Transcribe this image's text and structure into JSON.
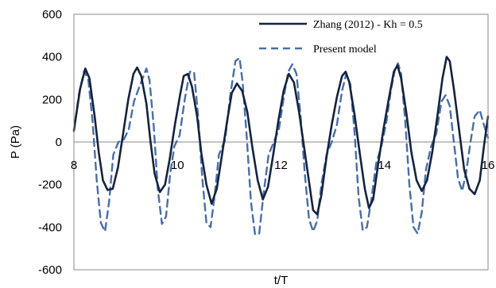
{
  "chart_data": {
    "type": "line",
    "title": "",
    "xlabel": "t/T",
    "ylabel": "P (Pa)",
    "xlim": [
      8,
      16
    ],
    "ylim": [
      -600,
      600
    ],
    "x_ticks": [
      8,
      10,
      12,
      14,
      16
    ],
    "y_ticks": [
      600,
      400,
      200,
      0,
      -200,
      -400,
      -600
    ],
    "legend": {
      "position": "top-right"
    },
    "series": [
      {
        "name": "Zhang (2012) - Kh = 0.5",
        "style": "solid",
        "color": "#14233f",
        "points": [
          [
            8.0,
            55
          ],
          [
            8.12,
            250
          ],
          [
            8.22,
            345
          ],
          [
            8.3,
            300
          ],
          [
            8.4,
            120
          ],
          [
            8.48,
            -50
          ],
          [
            8.56,
            -180
          ],
          [
            8.65,
            -225
          ],
          [
            8.75,
            -220
          ],
          [
            8.85,
            -120
          ],
          [
            8.95,
            40
          ],
          [
            9.05,
            200
          ],
          [
            9.15,
            320
          ],
          [
            9.22,
            350
          ],
          [
            9.3,
            310
          ],
          [
            9.4,
            180
          ],
          [
            9.48,
            0
          ],
          [
            9.56,
            -150
          ],
          [
            9.66,
            -235
          ],
          [
            9.76,
            -200
          ],
          [
            9.85,
            -80
          ],
          [
            9.95,
            80
          ],
          [
            10.05,
            220
          ],
          [
            10.12,
            310
          ],
          [
            10.2,
            320
          ],
          [
            10.28,
            260
          ],
          [
            10.38,
            120
          ],
          [
            10.46,
            -50
          ],
          [
            10.56,
            -200
          ],
          [
            10.66,
            -290
          ],
          [
            10.76,
            -220
          ],
          [
            10.86,
            -60
          ],
          [
            10.96,
            100
          ],
          [
            11.05,
            230
          ],
          [
            11.15,
            275
          ],
          [
            11.25,
            240
          ],
          [
            11.35,
            140
          ],
          [
            11.45,
            -30
          ],
          [
            11.55,
            -180
          ],
          [
            11.65,
            -270
          ],
          [
            11.75,
            -210
          ],
          [
            11.85,
            -60
          ],
          [
            11.95,
            100
          ],
          [
            12.05,
            240
          ],
          [
            12.15,
            320
          ],
          [
            12.25,
            280
          ],
          [
            12.35,
            140
          ],
          [
            12.45,
            -30
          ],
          [
            12.55,
            -200
          ],
          [
            12.62,
            -320
          ],
          [
            12.7,
            -340
          ],
          [
            12.78,
            -250
          ],
          [
            12.88,
            -70
          ],
          [
            12.98,
            80
          ],
          [
            13.08,
            210
          ],
          [
            13.18,
            310
          ],
          [
            13.25,
            330
          ],
          [
            13.32,
            280
          ],
          [
            13.42,
            130
          ],
          [
            13.52,
            -50
          ],
          [
            13.62,
            -220
          ],
          [
            13.7,
            -310
          ],
          [
            13.78,
            -270
          ],
          [
            13.88,
            -100
          ],
          [
            13.98,
            60
          ],
          [
            14.08,
            200
          ],
          [
            14.18,
            330
          ],
          [
            14.25,
            360
          ],
          [
            14.32,
            300
          ],
          [
            14.42,
            140
          ],
          [
            14.52,
            -50
          ],
          [
            14.62,
            -180
          ],
          [
            14.72,
            -230
          ],
          [
            14.82,
            -180
          ],
          [
            14.92,
            -50
          ],
          [
            15.02,
            120
          ],
          [
            15.12,
            300
          ],
          [
            15.2,
            400
          ],
          [
            15.26,
            380
          ],
          [
            15.34,
            250
          ],
          [
            15.44,
            60
          ],
          [
            15.54,
            -130
          ],
          [
            15.64,
            -220
          ],
          [
            15.74,
            -245
          ],
          [
            15.84,
            -180
          ],
          [
            15.92,
            -20
          ],
          [
            16.0,
            120
          ]
        ]
      },
      {
        "name": "Present model",
        "style": "dashed",
        "color": "#4a6ea6",
        "points": [
          [
            8.0,
            50
          ],
          [
            8.1,
            230
          ],
          [
            8.2,
            335
          ],
          [
            8.28,
            290
          ],
          [
            8.36,
            100
          ],
          [
            8.44,
            -180
          ],
          [
            8.52,
            -380
          ],
          [
            8.6,
            -420
          ],
          [
            8.68,
            -280
          ],
          [
            8.76,
            -60
          ],
          [
            8.86,
            0
          ],
          [
            8.96,
            10
          ],
          [
            9.06,
            60
          ],
          [
            9.16,
            190
          ],
          [
            9.28,
            270
          ],
          [
            9.4,
            345
          ],
          [
            9.46,
            290
          ],
          [
            9.54,
            80
          ],
          [
            9.62,
            -220
          ],
          [
            9.7,
            -385
          ],
          [
            9.78,
            -350
          ],
          [
            9.86,
            -150
          ],
          [
            9.94,
            -20
          ],
          [
            10.04,
            30
          ],
          [
            10.14,
            200
          ],
          [
            10.24,
            330
          ],
          [
            10.32,
            330
          ],
          [
            10.4,
            120
          ],
          [
            10.48,
            -170
          ],
          [
            10.56,
            -380
          ],
          [
            10.64,
            -400
          ],
          [
            10.72,
            -250
          ],
          [
            10.8,
            -60
          ],
          [
            10.92,
            10
          ],
          [
            11.02,
            220
          ],
          [
            11.12,
            380
          ],
          [
            11.2,
            395
          ],
          [
            11.26,
            280
          ],
          [
            11.34,
            20
          ],
          [
            11.42,
            -280
          ],
          [
            11.5,
            -435
          ],
          [
            11.58,
            -430
          ],
          [
            11.66,
            -250
          ],
          [
            11.76,
            -60
          ],
          [
            11.86,
            0
          ],
          [
            11.96,
            60
          ],
          [
            12.06,
            220
          ],
          [
            12.14,
            330
          ],
          [
            12.22,
            365
          ],
          [
            12.3,
            320
          ],
          [
            12.38,
            120
          ],
          [
            12.46,
            -150
          ],
          [
            12.54,
            -360
          ],
          [
            12.62,
            -420
          ],
          [
            12.7,
            -370
          ],
          [
            12.78,
            -200
          ],
          [
            12.88,
            -60
          ],
          [
            12.98,
            0
          ],
          [
            13.08,
            80
          ],
          [
            13.18,
            240
          ],
          [
            13.26,
            320
          ],
          [
            13.34,
            270
          ],
          [
            13.42,
            50
          ],
          [
            13.5,
            -260
          ],
          [
            13.58,
            -415
          ],
          [
            13.66,
            -400
          ],
          [
            13.74,
            -280
          ],
          [
            13.84,
            -100
          ],
          [
            13.94,
            -20
          ],
          [
            14.04,
            100
          ],
          [
            14.12,
            240
          ],
          [
            14.2,
            340
          ],
          [
            14.26,
            370
          ],
          [
            14.32,
            320
          ],
          [
            14.4,
            100
          ],
          [
            14.48,
            -200
          ],
          [
            14.56,
            -400
          ],
          [
            14.64,
            -430
          ],
          [
            14.72,
            -330
          ],
          [
            14.8,
            -130
          ],
          [
            14.9,
            -20
          ],
          [
            15.0,
            40
          ],
          [
            15.1,
            190
          ],
          [
            15.18,
            220
          ],
          [
            15.26,
            170
          ],
          [
            15.34,
            0
          ],
          [
            15.42,
            -170
          ],
          [
            15.5,
            -230
          ],
          [
            15.58,
            -140
          ],
          [
            15.66,
            0
          ],
          [
            15.74,
            120
          ],
          [
            15.84,
            150
          ],
          [
            15.92,
            80
          ],
          [
            16.0,
            20
          ]
        ]
      }
    ]
  }
}
